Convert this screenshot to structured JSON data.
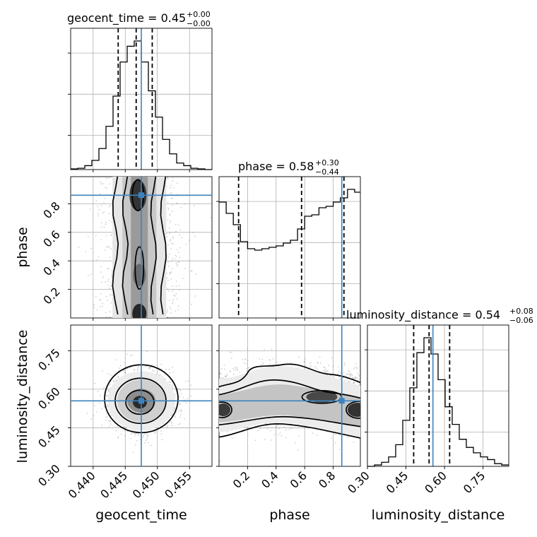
{
  "chart_data": {
    "type": "corner",
    "parameters": [
      "geocent_time",
      "phase",
      "luminosity_distance"
    ],
    "axis_labels": {
      "geocent_time": "geocent_time",
      "phase": "phase",
      "luminosity_distance": "luminosity_distance"
    },
    "titles": {
      "geocent_time": {
        "name": "geocent_time",
        "median": "0.45",
        "plus": "+0.00",
        "minus": "−0.00"
      },
      "phase": {
        "name": "phase",
        "median": "0.58",
        "plus": "+0.30",
        "minus": "−0.44"
      },
      "luminosity_distance": {
        "name": "luminosity_distance",
        "median": "0.54",
        "plus": "+0.08",
        "minus": "−0.06"
      }
    },
    "ranges": {
      "geocent_time": [
        0.4365,
        0.4585
      ],
      "phase": [
        0.0,
        0.99
      ],
      "luminosity_distance": [
        0.3,
        0.85
      ]
    },
    "ticks": {
      "geocent_time": {
        "values": [
          0.44,
          0.445,
          0.45,
          0.455
        ],
        "labels": [
          "0.440",
          "0.445",
          "0.450",
          "0.455"
        ]
      },
      "phase": {
        "values": [
          0.2,
          0.4,
          0.6,
          0.8
        ],
        "labels": [
          "0.2",
          "0.4",
          "0.6",
          "0.8"
        ]
      },
      "luminosity_distance": {
        "values": [
          0.3,
          0.45,
          0.6,
          0.75
        ],
        "labels": [
          "0.30",
          "0.45",
          "0.60",
          "0.75"
        ]
      }
    },
    "truths": {
      "geocent_time": 0.4475,
      "phase": 0.86,
      "luminosity_distance": 0.555
    },
    "quantiles": {
      "geocent_time": [
        0.4439,
        0.4467,
        0.4492
      ],
      "phase": [
        0.137,
        0.578,
        0.875
      ],
      "luminosity_distance": [
        0.48,
        0.54,
        0.62
      ]
    },
    "marginals": {
      "geocent_time": {
        "edges": [
          0.4365,
          0.4376,
          0.4387,
          0.4398,
          0.4409,
          0.442,
          0.4431,
          0.4442,
          0.4453,
          0.4464,
          0.4475,
          0.4486,
          0.4497,
          0.4508,
          0.4519,
          0.453,
          0.4541,
          0.4552,
          0.4563,
          0.4574,
          0.4585
        ],
        "counts": [
          0.005,
          0.01,
          0.03,
          0.07,
          0.16,
          0.33,
          0.56,
          0.82,
          0.94,
          0.98,
          0.82,
          0.6,
          0.4,
          0.23,
          0.12,
          0.05,
          0.03,
          0.01,
          0.005,
          0.0
        ]
      },
      "phase": {
        "edges": [
          0.0,
          0.05,
          0.1,
          0.15,
          0.2,
          0.25,
          0.3,
          0.35,
          0.4,
          0.45,
          0.5,
          0.55,
          0.6,
          0.65,
          0.7,
          0.75,
          0.8,
          0.85,
          0.9,
          0.95,
          0.99
        ],
        "counts": [
          0.82,
          0.74,
          0.66,
          0.54,
          0.49,
          0.48,
          0.49,
          0.5,
          0.51,
          0.53,
          0.55,
          0.63,
          0.72,
          0.73,
          0.78,
          0.79,
          0.82,
          0.85,
          0.91,
          0.89
        ]
      },
      "luminosity_distance": {
        "edges": [
          0.3,
          0.3275,
          0.355,
          0.3825,
          0.41,
          0.4375,
          0.465,
          0.4925,
          0.52,
          0.5475,
          0.575,
          0.6025,
          0.63,
          0.6575,
          0.685,
          0.7125,
          0.74,
          0.7675,
          0.795,
          0.8225,
          0.85
        ],
        "counts": [
          0.0,
          0.01,
          0.03,
          0.07,
          0.16,
          0.34,
          0.58,
          0.84,
          0.95,
          0.83,
          0.64,
          0.44,
          0.31,
          0.2,
          0.14,
          0.1,
          0.07,
          0.05,
          0.02,
          0.01
        ]
      }
    },
    "joint_2d": [
      {
        "x": "geocent_time",
        "y": "phase",
        "peaks": [
          {
            "x": 0.4472,
            "y": 0.86
          },
          {
            "x": 0.4472,
            "y": 0.3
          },
          {
            "x": 0.4472,
            "y": 0.03
          }
        ],
        "contour_levels": [
          "outer",
          "middle",
          "inner"
        ]
      },
      {
        "x": "geocent_time",
        "y": "luminosity_distance",
        "peaks": [
          {
            "x": 0.4475,
            "y": 0.555
          }
        ],
        "contour_levels": [
          "outer",
          "middle",
          "inner"
        ]
      },
      {
        "x": "phase",
        "y": "luminosity_distance",
        "peaks": [
          {
            "x": 0.72,
            "y": 0.57
          },
          {
            "x": 0.95,
            "y": 0.52
          },
          {
            "x": 0.04,
            "y": 0.52
          }
        ],
        "contour_levels": [
          "outer",
          "middle",
          "inner"
        ]
      }
    ],
    "colors": {
      "truth": "#3a83c1",
      "hist": "#000000",
      "density": "#555555"
    },
    "grid": true
  }
}
